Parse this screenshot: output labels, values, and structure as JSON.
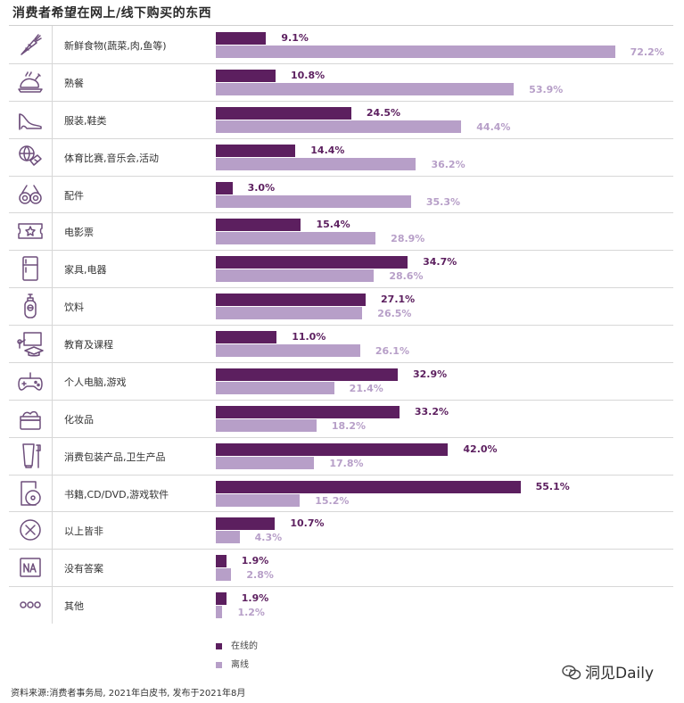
{
  "title": "消费者希望在网上/线下购买的东西",
  "chart_data": {
    "type": "bar",
    "orientation": "horizontal",
    "title": "消费者希望在网上/线下购买的东西",
    "categories": [
      "新鲜食物(蔬菜,肉,鱼等)",
      "熟餐",
      "服装,鞋类",
      "体育比赛,音乐会,活动",
      "配件",
      "电影票",
      "家具,电器",
      "饮料",
      "教育及课程",
      "个人电脑,游戏",
      "化妆品",
      "消费包装产品,卫生产品",
      "书籍,CD/DVD,游戏软件",
      "以上皆非",
      "没有答案",
      "其他"
    ],
    "icons": [
      "carrot-icon",
      "roast-chicken-icon",
      "high-heel-icon",
      "sports-ball-ticket-icon",
      "glasses-icon",
      "movie-ticket-icon",
      "fridge-icon",
      "drink-bottle-icon",
      "teaching-board-icon",
      "gamepad-icon",
      "cosmetics-jar-icon",
      "tube-toothbrush-icon",
      "disc-case-icon",
      "circle-x-icon",
      "na-box-icon",
      "dots-icon"
    ],
    "series": [
      {
        "name": "在线的",
        "color": "#5c1f5f",
        "values": [
          9.1,
          10.8,
          24.5,
          14.4,
          3.0,
          15.4,
          34.7,
          27.1,
          11.0,
          32.9,
          33.2,
          42.0,
          55.1,
          10.7,
          1.9,
          1.9
        ],
        "labels": [
          "9.1%",
          "10.8%",
          "24.5%",
          "14.4%",
          "3.0%",
          "15.4%",
          "34.7%",
          "27.1%",
          "11.0%",
          "32.9%",
          "33.2%",
          "42.0%",
          "55.1%",
          "10.7%",
          "1.9%",
          "1.9%"
        ]
      },
      {
        "name": "离线",
        "color": "#b79fc8",
        "values": [
          72.2,
          53.9,
          44.4,
          36.2,
          35.3,
          28.9,
          28.6,
          26.5,
          26.1,
          21.4,
          18.2,
          17.8,
          15.2,
          4.3,
          2.8,
          1.2
        ],
        "labels": [
          "72.2%",
          "53.9%",
          "44.4%",
          "36.2%",
          "35.3%",
          "28.9%",
          "28.6%",
          "26.5%",
          "26.1%",
          "21.4%",
          "18.2%",
          "17.8%",
          "15.2%",
          "4.3%",
          "2.8%",
          "1.2%"
        ]
      }
    ],
    "xlim": [
      0,
      80
    ],
    "legend": "bottom-left"
  },
  "source": "资料来源:消费者事务局, 2021年白皮书, 发布于2021年8月",
  "brand": "洞见Daily"
}
